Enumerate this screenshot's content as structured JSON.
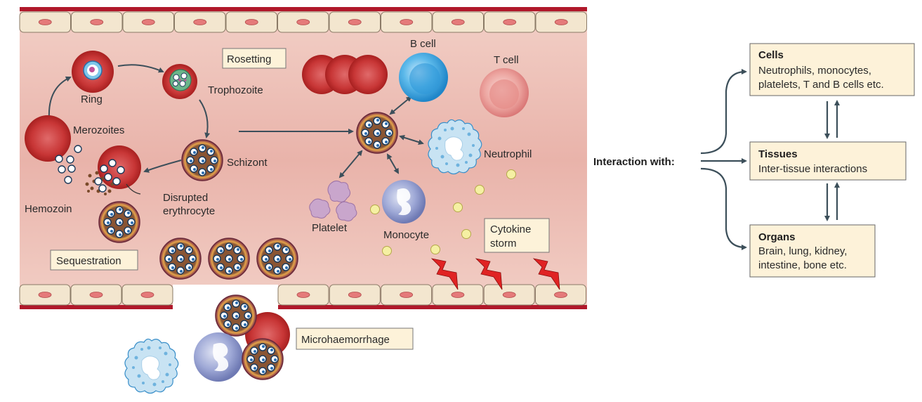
{
  "labels": {
    "rosetting": "Rosetting",
    "b_cell": "B cell",
    "t_cell": "T cell",
    "ring": "Ring",
    "trophozoite": "Trophozoite",
    "merozoites": "Merozoites",
    "schizont": "Schizont",
    "neutrophil": "Neutrophil",
    "disrupted_line1": "Disrupted",
    "disrupted_line2": "erythrocyte",
    "hemozoin": "Hemozoin",
    "platelet": "Platelet",
    "monocyte": "Monocyte",
    "cytokine_line1": "Cytokine",
    "cytokine_line2": "storm",
    "sequestration": "Sequestration",
    "microhaemorrhage": "Microhaemorrhage"
  },
  "interaction": {
    "title": "Interaction with:",
    "cells": {
      "header": "Cells",
      "line1": "Neutrophils, monocytes,",
      "line2": "platelets, T and B cells etc."
    },
    "tissues": {
      "header": "Tissues",
      "line1": "Inter-tissue interactions"
    },
    "organs": {
      "header": "Organs",
      "line1": "Brain, lung, kidney,",
      "line2": "intestine, bone etc."
    }
  },
  "colors": {
    "vessel_bg": "#eec3bb",
    "vessel_wall": "#b0182a",
    "endothelial": "#f3e6cf",
    "erythrocyte": "#c93a3a",
    "b_cell": "#3aa6e0",
    "t_cell": "#e08585",
    "monocyte": "#8c97c9",
    "platelet": "#c9a3c9",
    "label_box": "#fdf2d9",
    "interaction_box": "#fdf2d9",
    "arrow": "#3c4f5a"
  }
}
